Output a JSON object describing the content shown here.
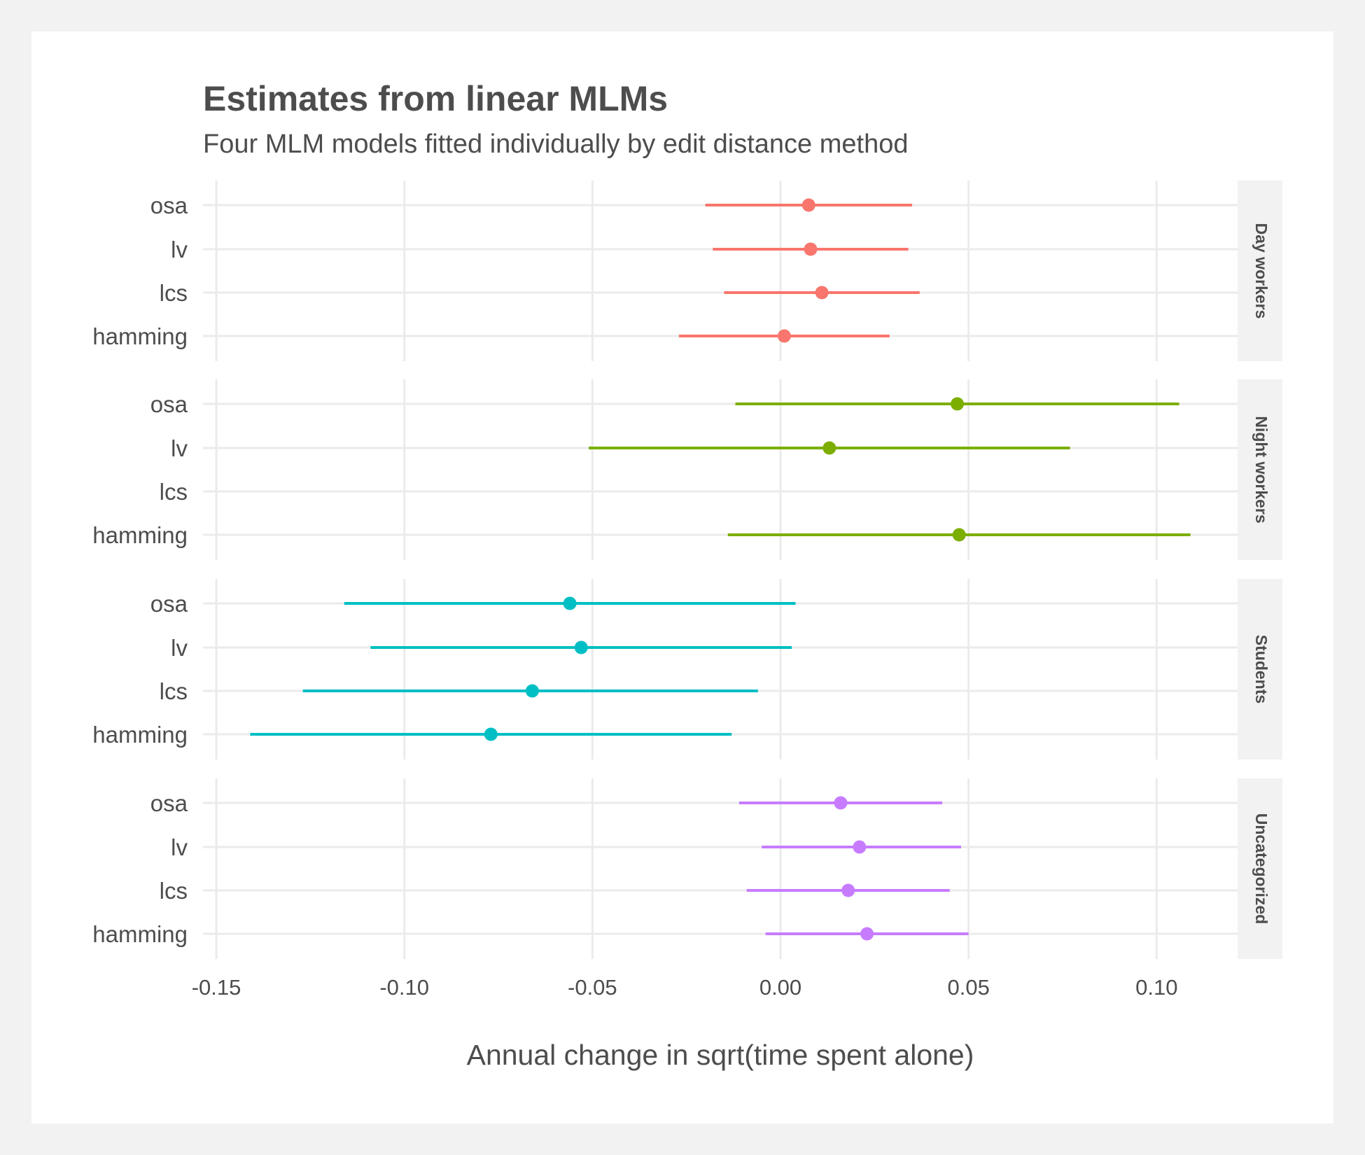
{
  "title": "Estimates from linear MLMs",
  "subtitle": "Four MLM models fitted individually by edit distance method",
  "chart_data": {
    "type": "scatter",
    "subtype": "pointrange-faceted",
    "xlabel": "Annual change in sqrt(time spent alone)",
    "ylabel": "",
    "xlim": [
      -0.153,
      0.12
    ],
    "x_ticks": [
      "-0.15",
      "-0.10",
      "-0.05",
      "0.00",
      "0.05",
      "0.10"
    ],
    "x_tick_values": [
      -0.15,
      -0.1,
      -0.05,
      0.0,
      0.05,
      0.1
    ],
    "categories": [
      "osa",
      "lv",
      "lcs",
      "hamming"
    ],
    "grid": true,
    "legend": "none",
    "facets": [
      {
        "name": "Day workers",
        "color": "#f8766d",
        "points": [
          {
            "method": "osa",
            "estimate": 0.0075,
            "lower": -0.02,
            "upper": 0.035
          },
          {
            "method": "lv",
            "estimate": 0.008,
            "lower": -0.018,
            "upper": 0.034
          },
          {
            "method": "lcs",
            "estimate": 0.011,
            "lower": -0.015,
            "upper": 0.037
          },
          {
            "method": "hamming",
            "estimate": 0.001,
            "lower": -0.027,
            "upper": 0.029
          }
        ]
      },
      {
        "name": "Night workers",
        "color": "#7cae00",
        "points": [
          {
            "method": "osa",
            "estimate": 0.047,
            "lower": -0.012,
            "upper": 0.106
          },
          {
            "method": "lv",
            "estimate": 0.013,
            "lower": -0.051,
            "upper": 0.077
          },
          {
            "method": "hamming",
            "estimate": 0.0475,
            "lower": -0.014,
            "upper": 0.109
          }
        ]
      },
      {
        "name": "Students",
        "color": "#00bfc4",
        "points": [
          {
            "method": "osa",
            "estimate": -0.056,
            "lower": -0.116,
            "upper": 0.004
          },
          {
            "method": "lv",
            "estimate": -0.053,
            "lower": -0.109,
            "upper": 0.003
          },
          {
            "method": "lcs",
            "estimate": -0.066,
            "lower": -0.127,
            "upper": -0.006
          },
          {
            "method": "hamming",
            "estimate": -0.077,
            "lower": -0.141,
            "upper": -0.013
          }
        ]
      },
      {
        "name": "Uncategorized",
        "color": "#c77cff",
        "points": [
          {
            "method": "osa",
            "estimate": 0.016,
            "lower": -0.011,
            "upper": 0.043
          },
          {
            "method": "lv",
            "estimate": 0.021,
            "lower": -0.005,
            "upper": 0.048
          },
          {
            "method": "lcs",
            "estimate": 0.018,
            "lower": -0.009,
            "upper": 0.045
          },
          {
            "method": "hamming",
            "estimate": 0.023,
            "lower": -0.004,
            "upper": 0.05
          }
        ]
      }
    ]
  }
}
